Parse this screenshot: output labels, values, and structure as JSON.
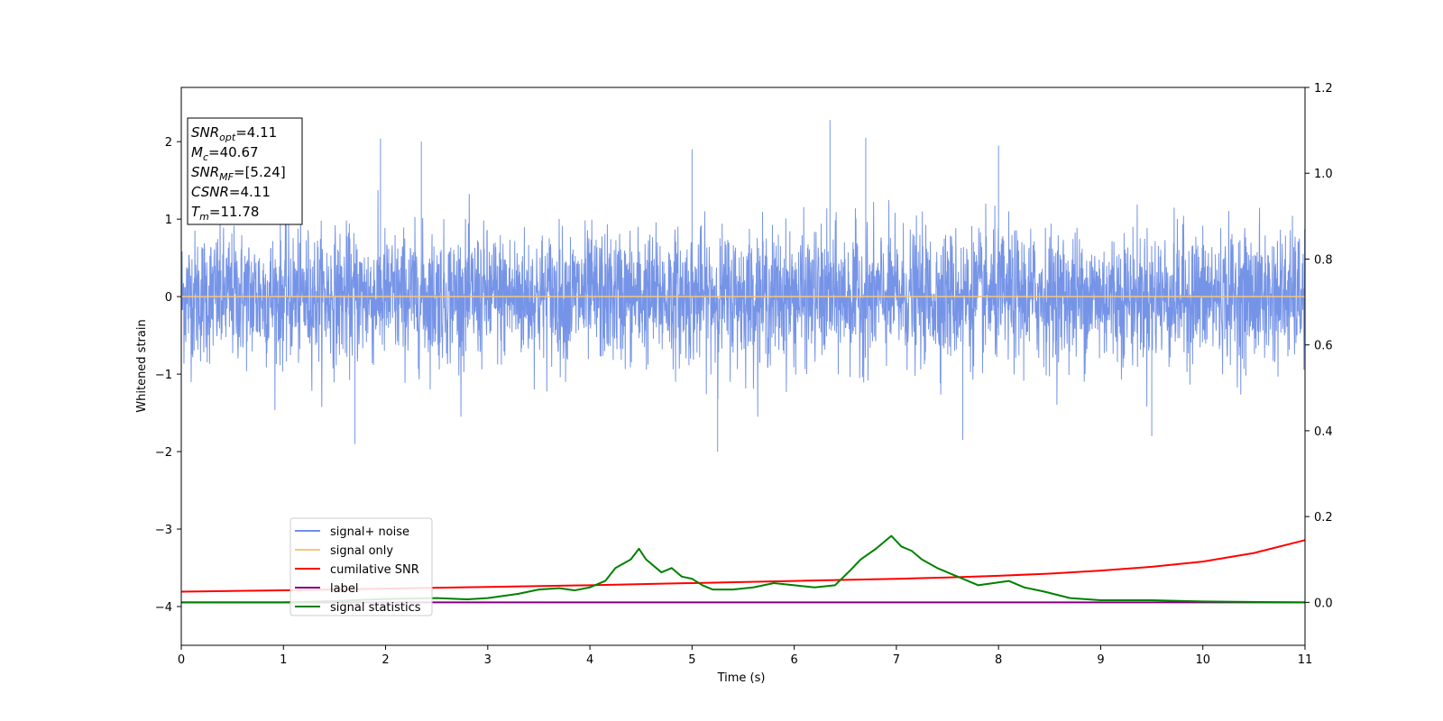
{
  "chart_data": {
    "type": "line",
    "title": "",
    "xlabel": "Time (s)",
    "ylabel": "Whitened strain",
    "xlim": [
      0,
      11
    ],
    "ylim": [
      -4.5,
      2.7
    ],
    "y2lim": [
      -0.1,
      1.2
    ],
    "xticks": [
      "0",
      "1",
      "2",
      "3",
      "4",
      "5",
      "6",
      "7",
      "8",
      "9",
      "10",
      "11"
    ],
    "yticks": [
      "2",
      "1",
      "0",
      "−1",
      "−2",
      "−3",
      "−4"
    ],
    "y2ticks": [
      "0.0",
      "0.2",
      "0.4",
      "0.6",
      "0.8",
      "1.0",
      "1.2"
    ],
    "grid": false,
    "legend_position": "lower-left",
    "info_box": [
      {
        "base": "SNR",
        "sub": "opt",
        "rest": "=4.11"
      },
      {
        "base": "M",
        "sub": "c",
        "rest": "=40.67"
      },
      {
        "base": "SNR",
        "sub": "MF",
        "rest": "=[5.24]"
      },
      {
        "base": "CSNR",
        "sub": "",
        "rest": "=4.11"
      },
      {
        "base": "T",
        "sub": "m",
        "rest": "=11.78"
      }
    ],
    "series": [
      {
        "name": "signal+ noise",
        "axis": "left",
        "color": "#6f8ee6",
        "noise_envelope": {
          "typical_amplitude": 1.0,
          "max": 2.28,
          "min": -2.0
        },
        "peaks": [
          [
            1.95,
            2.04
          ],
          [
            2.35,
            2.0
          ],
          [
            5.0,
            1.9
          ],
          [
            6.35,
            2.28
          ],
          [
            6.7,
            2.05
          ],
          [
            8.0,
            1.95
          ],
          [
            1.7,
            -1.9
          ],
          [
            5.25,
            -2.0
          ],
          [
            7.65,
            -1.85
          ],
          [
            9.5,
            -1.8
          ]
        ]
      },
      {
        "name": "signal only",
        "axis": "left",
        "color": "#f5c67a",
        "x": [
          0,
          11
        ],
        "y": [
          0,
          0
        ]
      },
      {
        "name": "cumilative SNR",
        "axis": "right",
        "color": "#ff0000",
        "x": [
          0,
          1,
          2,
          3,
          4,
          5,
          6,
          7,
          7.5,
          8,
          8.5,
          9,
          9.5,
          10,
          10.5,
          11
        ],
        "y": [
          0.025,
          0.028,
          0.032,
          0.036,
          0.04,
          0.045,
          0.05,
          0.055,
          0.058,
          0.062,
          0.067,
          0.074,
          0.083,
          0.095,
          0.115,
          0.145
        ]
      },
      {
        "name": "label",
        "axis": "right",
        "color": "#800080",
        "x": [
          0,
          11
        ],
        "y": [
          0,
          0
        ]
      },
      {
        "name": "signal statistics",
        "axis": "right",
        "color": "#008000",
        "x": [
          0,
          0.5,
          1,
          1.5,
          2,
          2.5,
          2.8,
          3,
          3.3,
          3.5,
          3.7,
          3.85,
          4,
          4.15,
          4.25,
          4.4,
          4.48,
          4.55,
          4.7,
          4.8,
          4.9,
          5.0,
          5.1,
          5.2,
          5.4,
          5.6,
          5.8,
          6.0,
          6.2,
          6.4,
          6.55,
          6.65,
          6.8,
          6.95,
          7.05,
          7.15,
          7.25,
          7.4,
          7.6,
          7.8,
          7.95,
          8.1,
          8.25,
          8.45,
          8.7,
          9.0,
          9.5,
          10.0,
          11.0
        ],
        "y": [
          0.0,
          0.0,
          0.0,
          0.003,
          0.008,
          0.01,
          0.007,
          0.01,
          0.02,
          0.03,
          0.033,
          0.028,
          0.035,
          0.05,
          0.08,
          0.1,
          0.125,
          0.1,
          0.07,
          0.08,
          0.06,
          0.055,
          0.04,
          0.03,
          0.03,
          0.035,
          0.045,
          0.04,
          0.035,
          0.04,
          0.075,
          0.1,
          0.125,
          0.155,
          0.13,
          0.12,
          0.1,
          0.08,
          0.06,
          0.04,
          0.045,
          0.05,
          0.035,
          0.025,
          0.01,
          0.005,
          0.005,
          0.002,
          0.0
        ]
      }
    ]
  }
}
